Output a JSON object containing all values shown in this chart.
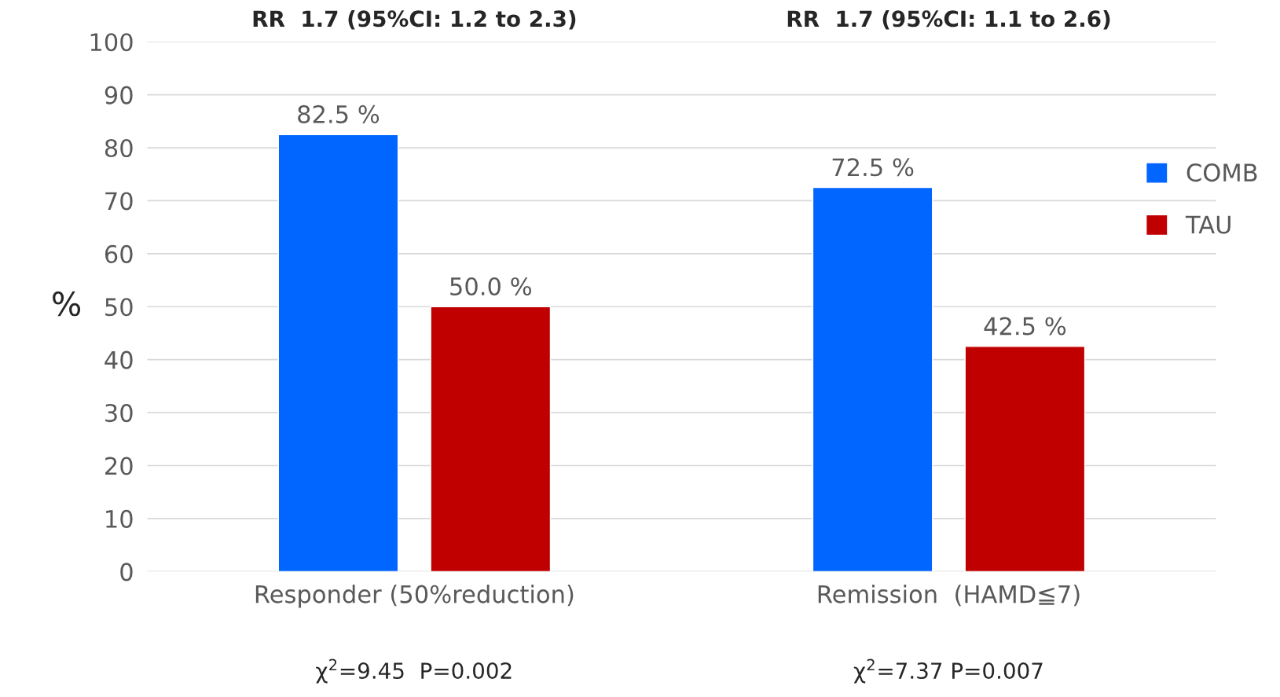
{
  "chart_data": {
    "type": "bar",
    "ylabel": "%",
    "categories": [
      "Responder (50%reduction)",
      "Remission  (HAMD≦7)"
    ],
    "series": [
      {
        "name": "COMB",
        "color": "#0066ff",
        "values": [
          82.5,
          72.5
        ],
        "value_labels": [
          "82.5 %",
          "72.5 %"
        ]
      },
      {
        "name": "TAU",
        "color": "#c00000",
        "values": [
          50.0,
          42.5
        ],
        "value_labels": [
          "50.0 %",
          "42.5 %"
        ]
      }
    ],
    "ylim": [
      0,
      100
    ],
    "yticks": [
      0,
      10,
      20,
      30,
      40,
      50,
      60,
      70,
      80,
      90,
      100
    ],
    "grid": "y",
    "legend": "right",
    "annotations": [
      "RR  1.7 (95%CI: 1.2 to 2.3)",
      "RR  1.7 (95%CI: 1.1 to 2.6)",
      "χ$^{2}$=9.45  P=0.002",
      "χ$^{2}$=7.37 P=0.007"
    ]
  }
}
